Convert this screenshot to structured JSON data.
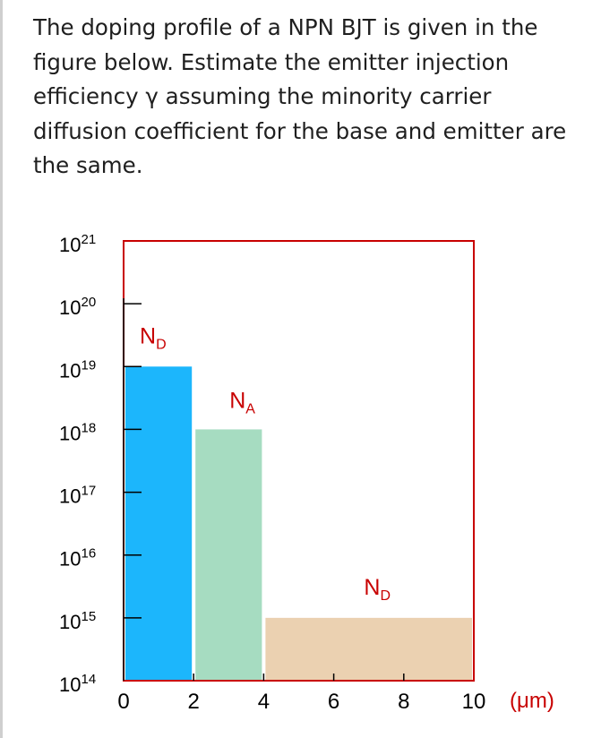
{
  "question": {
    "lines": [
      "The doping profile of a NPN BJT is given in the",
      "figure below. Estimate the emitter injection",
      "efficiency γ assuming the minority carrier",
      "diffusion coefficient for the base and emitter are",
      "the same."
    ]
  },
  "chart_data": {
    "type": "bar",
    "y_scale": "log",
    "x_range": [
      0,
      10
    ],
    "y_range": [
      100000000000000.0,
      1e+21
    ],
    "x_unit": "(μm)",
    "x_ticks": [
      "0",
      "2",
      "4",
      "6",
      "8",
      "10"
    ],
    "y_ticks": [
      {
        "base": "10",
        "exp": "21"
      },
      {
        "base": "10",
        "exp": "20"
      },
      {
        "base": "10",
        "exp": "19"
      },
      {
        "base": "10",
        "exp": "18"
      },
      {
        "base": "10",
        "exp": "17"
      },
      {
        "base": "10",
        "exp": "16"
      },
      {
        "base": "10",
        "exp": "15"
      },
      {
        "base": "10",
        "exp": "14"
      }
    ],
    "regions": [
      {
        "label": "N",
        "sub": "D",
        "x_start": 0,
        "x_end": 2,
        "value": 1e+19,
        "color": "#1cb6fc"
      },
      {
        "label": "N",
        "sub": "A",
        "x_start": 2,
        "x_end": 4,
        "value": 1e+18,
        "color": "#a6dcc1"
      },
      {
        "label": "N",
        "sub": "D",
        "x_start": 4,
        "x_end": 10,
        "value": 1000000000000000.0,
        "color": "#ebd1b1"
      }
    ],
    "colors": {
      "frame": "#c80000",
      "axis": "#000000",
      "text": "#c80000"
    }
  }
}
